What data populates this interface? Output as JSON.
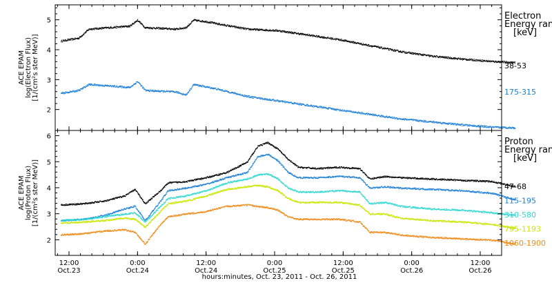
{
  "chart_data": [
    {
      "type": "scatter",
      "panel": "electron",
      "ylabel": [
        "ACE EPAM",
        "log(Electron Flux)",
        "[1/(cm²s ster MeV)]"
      ],
      "ylim": [
        1.3,
        5.5
      ],
      "yticks": [
        2,
        3,
        4,
        5
      ],
      "legend_title": [
        "Electron",
        "Energy ranges",
        "[keV]"
      ],
      "x_time_range": [
        "2011-10-23 05:30",
        "2011-10-26 22:30"
      ],
      "series": [
        {
          "name": "38-53",
          "color": "#000000",
          "points": [
            [
              "2011-10-23 05:30",
              4.3
            ],
            [
              "2011-10-23 09:00",
              4.4
            ],
            [
              "2011-10-23 11:00",
              4.7
            ],
            [
              "2011-10-23 15:00",
              4.75
            ],
            [
              "2011-10-23 19:00",
              4.8
            ],
            [
              "2011-10-23 20:30",
              5.0
            ],
            [
              "2011-10-23 22:00",
              4.75
            ],
            [
              "2011-10-24 04:00",
              4.7
            ],
            [
              "2011-10-24 06:00",
              4.75
            ],
            [
              "2011-10-24 07:30",
              5.0
            ],
            [
              "2011-10-24 10:00",
              4.95
            ],
            [
              "2011-10-24 13:00",
              4.85
            ],
            [
              "2011-10-24 18:00",
              4.7
            ],
            [
              "2011-10-25 00:00",
              4.65
            ],
            [
              "2011-10-25 06:00",
              4.5
            ],
            [
              "2011-10-25 12:00",
              4.35
            ],
            [
              "2011-10-25 18:00",
              4.15
            ],
            [
              "2011-10-26 00:00",
              3.95
            ],
            [
              "2011-10-26 06:00",
              3.8
            ],
            [
              "2011-10-26 12:00",
              3.7
            ],
            [
              "2011-10-26 18:00",
              3.62
            ],
            [
              "2011-10-26 22:30",
              3.58
            ]
          ]
        },
        {
          "name": "175-315",
          "color": "#1c7fd8",
          "points": [
            [
              "2011-10-23 05:30",
              2.55
            ],
            [
              "2011-10-23 09:00",
              2.65
            ],
            [
              "2011-10-23 11:00",
              2.85
            ],
            [
              "2011-10-23 15:00",
              2.8
            ],
            [
              "2011-10-23 19:00",
              2.75
            ],
            [
              "2011-10-23 20:30",
              2.95
            ],
            [
              "2011-10-23 22:00",
              2.65
            ],
            [
              "2011-10-24 04:00",
              2.6
            ],
            [
              "2011-10-24 06:00",
              2.5
            ],
            [
              "2011-10-24 07:30",
              2.85
            ],
            [
              "2011-10-24 12:00",
              2.7
            ],
            [
              "2011-10-24 18:00",
              2.45
            ],
            [
              "2011-10-25 00:00",
              2.3
            ],
            [
              "2011-10-25 06:00",
              2.15
            ],
            [
              "2011-10-25 12:00",
              2.0
            ],
            [
              "2011-10-25 18:00",
              1.85
            ],
            [
              "2011-10-26 00:00",
              1.7
            ],
            [
              "2011-10-26 06:00",
              1.6
            ],
            [
              "2011-10-26 12:00",
              1.5
            ],
            [
              "2011-10-26 18:00",
              1.42
            ],
            [
              "2011-10-26 22:30",
              1.4
            ]
          ]
        }
      ]
    },
    {
      "type": "scatter",
      "panel": "proton",
      "ylabel": [
        "ACE EPAM",
        "log(Proton Flux)",
        "[1/(cm²s ster MeV)]"
      ],
      "ylim": [
        1.4,
        6.2
      ],
      "yticks": [
        2,
        3,
        4,
        5,
        6
      ],
      "legend_title": [
        "Proton",
        "Energy ranges",
        "[keV]"
      ],
      "x_time_range": [
        "2011-10-23 05:30",
        "2011-10-26 22:30"
      ],
      "xticks": [
        {
          "t": "2011-10-23 12:00",
          "time": "12:00",
          "date": "Oct.23"
        },
        {
          "t": "2011-10-24 00:00",
          "time": "0:00",
          "date": "Oct.24"
        },
        {
          "t": "2011-10-24 12:00",
          "time": "12:00",
          "date": "Oct.24"
        },
        {
          "t": "2011-10-25 00:00",
          "time": "0:00",
          "date": "Oct.25"
        },
        {
          "t": "2011-10-25 12:00",
          "time": "12:00",
          "date": "Oct.25"
        },
        {
          "t": "2011-10-26 00:00",
          "time": "0:00",
          "date": "Oct.26"
        },
        {
          "t": "2011-10-26 12:00",
          "time": "12:00",
          "date": "Oct.26"
        }
      ],
      "xlabel": "hours:minutes, Oct. 23, 2011 - Oct. 26, 2011",
      "series": [
        {
          "name": "47-68",
          "color": "#000000",
          "points": [
            [
              "2011-10-23 05:30",
              3.35
            ],
            [
              "2011-10-23 10:00",
              3.4
            ],
            [
              "2011-10-23 14:00",
              3.5
            ],
            [
              "2011-10-23 18:00",
              3.7
            ],
            [
              "2011-10-23 20:00",
              3.95
            ],
            [
              "2011-10-23 22:00",
              3.4
            ],
            [
              "2011-10-24 01:00",
              3.9
            ],
            [
              "2011-10-24 02:30",
              4.2
            ],
            [
              "2011-10-24 06:00",
              4.25
            ],
            [
              "2011-10-24 10:00",
              4.4
            ],
            [
              "2011-10-24 14:00",
              4.6
            ],
            [
              "2011-10-24 18:00",
              5.0
            ],
            [
              "2011-10-24 20:00",
              5.6
            ],
            [
              "2011-10-24 22:00",
              5.75
            ],
            [
              "2011-10-25 00:00",
              5.5
            ],
            [
              "2011-10-25 02:00",
              5.1
            ],
            [
              "2011-10-25 04:00",
              4.8
            ],
            [
              "2011-10-25 08:00",
              4.75
            ],
            [
              "2011-10-25 12:00",
              4.8
            ],
            [
              "2011-10-25 16:00",
              4.75
            ],
            [
              "2011-10-25 18:00",
              4.35
            ],
            [
              "2011-10-25 21:00",
              4.45
            ],
            [
              "2011-10-26 00:00",
              4.4
            ],
            [
              "2011-10-26 06:00",
              4.35
            ],
            [
              "2011-10-26 12:00",
              4.3
            ],
            [
              "2011-10-26 18:00",
              4.25
            ],
            [
              "2011-10-26 22:30",
              4.05
            ]
          ]
        },
        {
          "name": "115-195",
          "color": "#1c7fd8",
          "points": [
            [
              "2011-10-23 05:30",
              2.75
            ],
            [
              "2011-10-23 10:00",
              2.8
            ],
            [
              "2011-10-23 14:00",
              2.95
            ],
            [
              "2011-10-23 18:00",
              3.2
            ],
            [
              "2011-10-23 20:00",
              3.3
            ],
            [
              "2011-10-23 22:00",
              2.75
            ],
            [
              "2011-10-24 01:00",
              3.5
            ],
            [
              "2011-10-24 02:30",
              3.9
            ],
            [
              "2011-10-24 06:00",
              4.0
            ],
            [
              "2011-10-24 10:00",
              4.15
            ],
            [
              "2011-10-24 14:00",
              4.4
            ],
            [
              "2011-10-24 18:00",
              4.6
            ],
            [
              "2011-10-24 20:00",
              5.2
            ],
            [
              "2011-10-24 22:00",
              5.3
            ],
            [
              "2011-10-25 00:00",
              5.05
            ],
            [
              "2011-10-25 02:00",
              4.6
            ],
            [
              "2011-10-25 04:00",
              4.4
            ],
            [
              "2011-10-25 08:00",
              4.4
            ],
            [
              "2011-10-25 12:00",
              4.45
            ],
            [
              "2011-10-25 16:00",
              4.4
            ],
            [
              "2011-10-25 18:00",
              4.0
            ],
            [
              "2011-10-25 21:00",
              4.05
            ],
            [
              "2011-10-26 00:00",
              4.0
            ],
            [
              "2011-10-26 06:00",
              3.95
            ],
            [
              "2011-10-26 12:00",
              3.9
            ],
            [
              "2011-10-26 18:00",
              3.8
            ],
            [
              "2011-10-26 22:30",
              3.55
            ]
          ]
        },
        {
          "name": "310-580",
          "color": "#2ed8d0",
          "points": [
            [
              "2011-10-23 05:30",
              2.75
            ],
            [
              "2011-10-23 10:00",
              2.8
            ],
            [
              "2011-10-23 14:00",
              2.9
            ],
            [
              "2011-10-23 18:00",
              3.0
            ],
            [
              "2011-10-23 20:00",
              3.05
            ],
            [
              "2011-10-23 22:00",
              2.7
            ],
            [
              "2011-10-24 01:00",
              3.3
            ],
            [
              "2011-10-24 02:30",
              3.6
            ],
            [
              "2011-10-24 06:00",
              3.7
            ],
            [
              "2011-10-24 10:00",
              3.9
            ],
            [
              "2011-10-24 14:00",
              4.2
            ],
            [
              "2011-10-24 18:00",
              4.35
            ],
            [
              "2011-10-24 20:00",
              4.5
            ],
            [
              "2011-10-24 22:00",
              4.55
            ],
            [
              "2011-10-25 00:00",
              4.35
            ],
            [
              "2011-10-25 02:00",
              4.0
            ],
            [
              "2011-10-25 04:00",
              3.85
            ],
            [
              "2011-10-25 08:00",
              3.85
            ],
            [
              "2011-10-25 12:00",
              3.9
            ],
            [
              "2011-10-25 16:00",
              3.85
            ],
            [
              "2011-10-25 18:00",
              3.4
            ],
            [
              "2011-10-25 21:00",
              3.45
            ],
            [
              "2011-10-26 00:00",
              3.3
            ],
            [
              "2011-10-26 06:00",
              3.2
            ],
            [
              "2011-10-26 12:00",
              3.15
            ],
            [
              "2011-10-26 18:00",
              3.05
            ],
            [
              "2011-10-26 22:30",
              2.95
            ]
          ]
        },
        {
          "name": "795-1193",
          "color": "#c8e600",
          "points": [
            [
              "2011-10-23 05:30",
              2.65
            ],
            [
              "2011-10-23 10:00",
              2.7
            ],
            [
              "2011-10-23 14:00",
              2.75
            ],
            [
              "2011-10-23 18:00",
              2.85
            ],
            [
              "2011-10-23 20:00",
              2.8
            ],
            [
              "2011-10-23 22:00",
              2.5
            ],
            [
              "2011-10-24 01:00",
              3.1
            ],
            [
              "2011-10-24 02:30",
              3.4
            ],
            [
              "2011-10-24 06:00",
              3.5
            ],
            [
              "2011-10-24 10:00",
              3.7
            ],
            [
              "2011-10-24 14:00",
              3.95
            ],
            [
              "2011-10-24 18:00",
              4.05
            ],
            [
              "2011-10-24 20:00",
              4.1
            ],
            [
              "2011-10-24 22:00",
              4.05
            ],
            [
              "2011-10-25 00:00",
              3.9
            ],
            [
              "2011-10-25 02:00",
              3.6
            ],
            [
              "2011-10-25 04:00",
              3.45
            ],
            [
              "2011-10-25 08:00",
              3.45
            ],
            [
              "2011-10-25 12:00",
              3.45
            ],
            [
              "2011-10-25 16:00",
              3.35
            ],
            [
              "2011-10-25 18:00",
              3.0
            ],
            [
              "2011-10-25 21:00",
              3.0
            ],
            [
              "2011-10-26 00:00",
              2.85
            ],
            [
              "2011-10-26 06:00",
              2.75
            ],
            [
              "2011-10-26 12:00",
              2.7
            ],
            [
              "2011-10-26 18:00",
              2.6
            ],
            [
              "2011-10-26 22:30",
              2.45
            ]
          ]
        },
        {
          "name": "1060-1900",
          "color": "#f08a18",
          "points": [
            [
              "2011-10-23 05:30",
              2.2
            ],
            [
              "2011-10-23 10:00",
              2.25
            ],
            [
              "2011-10-23 14:00",
              2.35
            ],
            [
              "2011-10-23 18:00",
              2.4
            ],
            [
              "2011-10-23 20:00",
              2.3
            ],
            [
              "2011-10-23 22:00",
              1.85
            ],
            [
              "2011-10-24 01:00",
              2.6
            ],
            [
              "2011-10-24 02:30",
              2.9
            ],
            [
              "2011-10-24 06:00",
              3.0
            ],
            [
              "2011-10-24 10:00",
              3.1
            ],
            [
              "2011-10-24 14:00",
              3.3
            ],
            [
              "2011-10-24 18:00",
              3.35
            ],
            [
              "2011-10-24 20:00",
              3.3
            ],
            [
              "2011-10-24 22:00",
              3.25
            ],
            [
              "2011-10-25 00:00",
              3.15
            ],
            [
              "2011-10-25 02:00",
              2.9
            ],
            [
              "2011-10-25 04:00",
              2.8
            ],
            [
              "2011-10-25 08:00",
              2.8
            ],
            [
              "2011-10-25 12:00",
              2.8
            ],
            [
              "2011-10-25 16:00",
              2.7
            ],
            [
              "2011-10-25 18:00",
              2.3
            ],
            [
              "2011-10-25 21:00",
              2.3
            ],
            [
              "2011-10-26 00:00",
              2.2
            ],
            [
              "2011-10-26 06:00",
              2.1
            ],
            [
              "2011-10-26 12:00",
              2.05
            ],
            [
              "2011-10-26 18:00",
              2.0
            ],
            [
              "2011-10-26 22:30",
              1.85
            ]
          ]
        }
      ]
    }
  ]
}
